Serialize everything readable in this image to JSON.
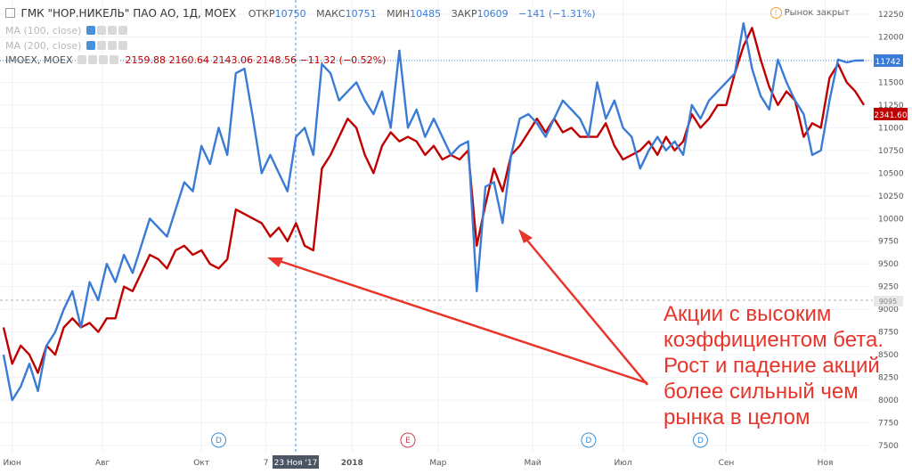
{
  "header": {
    "symbol": "ГМК \"НОР.НИКЕЛЬ\" ПАО АО, 1Д, MOEX",
    "open_label": "ОТКР",
    "open": "10750",
    "high_label": "МАКС",
    "high": "10751",
    "low_label": "МИН",
    "low": "10485",
    "close_label": "ЗАКР",
    "close": "10609",
    "change": "−141 (−1.31%)",
    "market_status": "Рынок закрыт"
  },
  "indicators": {
    "ma100": "MA (100, close)",
    "ma200": "MA (200, close)",
    "imoex_label": "IMOEX, MOEX",
    "imoex_values": "2159.88  2160.64  2143.06  2148.56  −11.32 (−0.52%)"
  },
  "annotation": "Акции с высоким коэффициентом бета. Рост и падение акций более сильный чем рынка в целом",
  "price_tags": {
    "gmk": "11742",
    "imoex": "2341.60",
    "dashed": "9095"
  },
  "crosshair_label": "23 Ноя '17",
  "colors": {
    "gmk": "#3a7bd5",
    "imoex": "#c00000",
    "arrow": "#e8352b",
    "grid": "#eef1f5"
  },
  "chart_data": {
    "type": "line",
    "x_ticks": [
      "Июн",
      "Авг",
      "Окт",
      "7",
      "2018",
      "Мар",
      "Май",
      "Июл",
      "Сен",
      "Ноя"
    ],
    "y_ticks": [
      7500,
      7750,
      8000,
      8250,
      8500,
      8750,
      9000,
      9250,
      9500,
      9750,
      10000,
      10250,
      10500,
      10750,
      11000,
      11250,
      11500,
      11750,
      12000,
      12250
    ],
    "ylim": [
      7500,
      12250
    ],
    "x_range": [
      0,
      100
    ],
    "events": [
      {
        "label": "D",
        "x": 25
      },
      {
        "label": "E",
        "x": 47
      },
      {
        "label": "D",
        "x": 68
      },
      {
        "label": "D",
        "x": 81
      }
    ],
    "series": [
      {
        "name": "ГМК \"НОР.НИКЕЛЬ\" ПАО АО",
        "points": [
          [
            0,
            8500
          ],
          [
            1,
            8000
          ],
          [
            2,
            8150
          ],
          [
            3,
            8400
          ],
          [
            4,
            8100
          ],
          [
            5,
            8600
          ],
          [
            6,
            8750
          ],
          [
            7,
            9000
          ],
          [
            8,
            9200
          ],
          [
            9,
            8800
          ],
          [
            10,
            9300
          ],
          [
            11,
            9100
          ],
          [
            12,
            9500
          ],
          [
            13,
            9300
          ],
          [
            14,
            9600
          ],
          [
            15,
            9400
          ],
          [
            16,
            9700
          ],
          [
            17,
            10000
          ],
          [
            18,
            9900
          ],
          [
            19,
            9800
          ],
          [
            20,
            10100
          ],
          [
            21,
            10400
          ],
          [
            22,
            10300
          ],
          [
            23,
            10800
          ],
          [
            24,
            10600
          ],
          [
            25,
            11000
          ],
          [
            26,
            10700
          ],
          [
            27,
            11600
          ],
          [
            28,
            11650
          ],
          [
            29,
            11100
          ],
          [
            30,
            10500
          ],
          [
            31,
            10700
          ],
          [
            32,
            10500
          ],
          [
            33,
            10300
          ],
          [
            34,
            10900
          ],
          [
            35,
            11000
          ],
          [
            36,
            10700
          ],
          [
            37,
            11700
          ],
          [
            38,
            11600
          ],
          [
            39,
            11300
          ],
          [
            40,
            11400
          ],
          [
            41,
            11500
          ],
          [
            42,
            11300
          ],
          [
            43,
            11150
          ],
          [
            44,
            11400
          ],
          [
            45,
            11000
          ],
          [
            46,
            11850
          ],
          [
            47,
            11000
          ],
          [
            48,
            11200
          ],
          [
            49,
            10900
          ],
          [
            50,
            11100
          ],
          [
            51,
            10900
          ],
          [
            52,
            10700
          ],
          [
            53,
            10800
          ],
          [
            54,
            10850
          ],
          [
            55,
            9200
          ],
          [
            56,
            10350
          ],
          [
            57,
            10400
          ],
          [
            58,
            9950
          ],
          [
            59,
            10700
          ],
          [
            60,
            11100
          ],
          [
            61,
            11150
          ],
          [
            62,
            11050
          ],
          [
            63,
            10900
          ],
          [
            64,
            11100
          ],
          [
            65,
            11300
          ],
          [
            66,
            11200
          ],
          [
            67,
            11100
          ],
          [
            68,
            10900
          ],
          [
            69,
            11500
          ],
          [
            70,
            11100
          ],
          [
            71,
            11300
          ],
          [
            72,
            11000
          ],
          [
            73,
            10900
          ],
          [
            74,
            10550
          ],
          [
            75,
            10750
          ],
          [
            76,
            10900
          ],
          [
            77,
            10750
          ],
          [
            78,
            10850
          ],
          [
            79,
            10700
          ],
          [
            80,
            11250
          ],
          [
            81,
            11100
          ],
          [
            82,
            11300
          ],
          [
            83,
            11400
          ],
          [
            84,
            11500
          ],
          [
            85,
            11600
          ],
          [
            86,
            12150
          ],
          [
            87,
            11650
          ],
          [
            88,
            11350
          ],
          [
            89,
            11200
          ],
          [
            90,
            11750
          ],
          [
            91,
            11500
          ],
          [
            92,
            11300
          ],
          [
            93,
            11150
          ],
          [
            94,
            10700
          ],
          [
            95,
            10750
          ],
          [
            96,
            11300
          ],
          [
            97,
            11750
          ],
          [
            98,
            11720
          ],
          [
            99,
            11740
          ],
          [
            100,
            11742
          ]
        ]
      },
      {
        "name": "IMOEX",
        "points": [
          [
            0,
            8800
          ],
          [
            1,
            8400
          ],
          [
            2,
            8600
          ],
          [
            3,
            8500
          ],
          [
            4,
            8300
          ],
          [
            5,
            8600
          ],
          [
            6,
            8500
          ],
          [
            7,
            8800
          ],
          [
            8,
            8900
          ],
          [
            9,
            8800
          ],
          [
            10,
            8850
          ],
          [
            11,
            8750
          ],
          [
            12,
            8900
          ],
          [
            13,
            8900
          ],
          [
            14,
            9250
          ],
          [
            15,
            9200
          ],
          [
            16,
            9400
          ],
          [
            17,
            9600
          ],
          [
            18,
            9550
          ],
          [
            19,
            9450
          ],
          [
            20,
            9650
          ],
          [
            21,
            9700
          ],
          [
            22,
            9600
          ],
          [
            23,
            9650
          ],
          [
            24,
            9500
          ],
          [
            25,
            9450
          ],
          [
            26,
            9550
          ],
          [
            27,
            10100
          ],
          [
            28,
            10050
          ],
          [
            29,
            10000
          ],
          [
            30,
            9950
          ],
          [
            31,
            9800
          ],
          [
            32,
            9900
          ],
          [
            33,
            9750
          ],
          [
            34,
            9950
          ],
          [
            35,
            9700
          ],
          [
            36,
            9650
          ],
          [
            37,
            10550
          ],
          [
            38,
            10700
          ],
          [
            39,
            10900
          ],
          [
            40,
            11100
          ],
          [
            41,
            11000
          ],
          [
            42,
            10700
          ],
          [
            43,
            10500
          ],
          [
            44,
            10800
          ],
          [
            45,
            10950
          ],
          [
            46,
            10850
          ],
          [
            47,
            10900
          ],
          [
            48,
            10850
          ],
          [
            49,
            10700
          ],
          [
            50,
            10800
          ],
          [
            51,
            10650
          ],
          [
            52,
            10700
          ],
          [
            53,
            10650
          ],
          [
            54,
            10750
          ],
          [
            55,
            9700
          ],
          [
            56,
            10150
          ],
          [
            57,
            10550
          ],
          [
            58,
            10300
          ],
          [
            59,
            10700
          ],
          [
            60,
            10800
          ],
          [
            61,
            10950
          ],
          [
            62,
            11100
          ],
          [
            63,
            10950
          ],
          [
            64,
            11100
          ],
          [
            65,
            10950
          ],
          [
            66,
            11000
          ],
          [
            67,
            10900
          ],
          [
            68,
            10900
          ],
          [
            69,
            10900
          ],
          [
            70,
            11050
          ],
          [
            71,
            10800
          ],
          [
            72,
            10650
          ],
          [
            73,
            10700
          ],
          [
            74,
            10750
          ],
          [
            75,
            10850
          ],
          [
            76,
            10700
          ],
          [
            77,
            10900
          ],
          [
            78,
            10750
          ],
          [
            79,
            10850
          ],
          [
            80,
            11150
          ],
          [
            81,
            11000
          ],
          [
            82,
            11100
          ],
          [
            83,
            11250
          ],
          [
            84,
            11250
          ],
          [
            85,
            11600
          ],
          [
            86,
            11900
          ],
          [
            87,
            12100
          ],
          [
            88,
            11750
          ],
          [
            89,
            11450
          ],
          [
            90,
            11250
          ],
          [
            91,
            11400
          ],
          [
            92,
            11300
          ],
          [
            93,
            10900
          ],
          [
            94,
            11050
          ],
          [
            95,
            11000
          ],
          [
            96,
            11550
          ],
          [
            97,
            11700
          ],
          [
            98,
            11500
          ],
          [
            99,
            11400
          ],
          [
            100,
            11250
          ]
        ]
      }
    ]
  }
}
